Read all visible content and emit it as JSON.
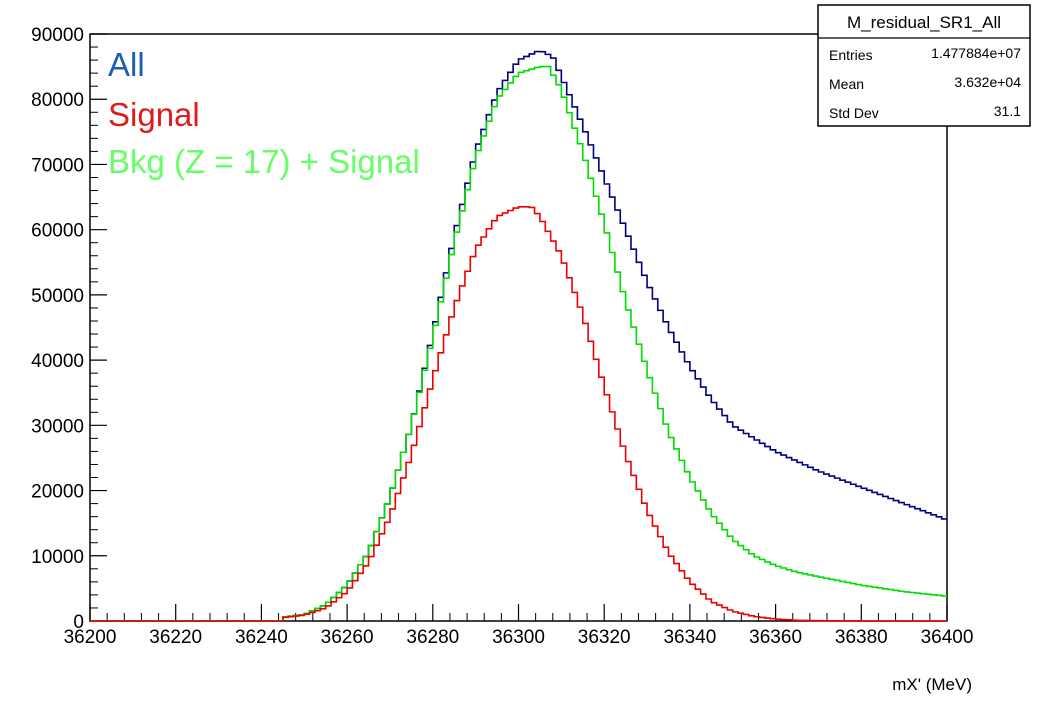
{
  "chart_data": {
    "type": "line",
    "xlabel": "mX' (MeV)",
    "ylabel": "",
    "xlim": [
      36200,
      36400
    ],
    "ylim": [
      0,
      90000
    ],
    "x_ticks": [
      36200,
      36220,
      36240,
      36260,
      36280,
      36300,
      36320,
      36340,
      36360,
      36380,
      36400
    ],
    "y_ticks": [
      0,
      10000,
      20000,
      30000,
      40000,
      50000,
      60000,
      70000,
      80000,
      90000
    ],
    "x_tick_labels": [
      "36200",
      "36220",
      "36240",
      "36260",
      "36280",
      "36300",
      "36320",
      "36340",
      "36360",
      "36380",
      "36400"
    ],
    "y_tick_labels": [
      "0",
      "10000",
      "20000",
      "30000",
      "40000",
      "50000",
      "60000",
      "70000",
      "80000",
      "90000"
    ],
    "grid": false,
    "legend_placement": "top-left",
    "series": [
      {
        "name": "All",
        "color": "#000080",
        "x": [
          36250,
          36255,
          36260,
          36265,
          36270,
          36275,
          36280,
          36285,
          36290,
          36295,
          36300,
          36305,
          36308,
          36310,
          36315,
          36320,
          36325,
          36330,
          36335,
          36340,
          36345,
          36350,
          36355,
          36360,
          36365,
          36370,
          36380,
          36390,
          36400
        ],
        "y": [
          1000,
          2500,
          5500,
          10500,
          19000,
          30000,
          44000,
          59000,
          72000,
          81000,
          86000,
          87500,
          86500,
          83500,
          76000,
          68000,
          60000,
          52000,
          45000,
          39000,
          34000,
          30000,
          28000,
          26000,
          24500,
          23000,
          20500,
          18000,
          15500
        ]
      },
      {
        "name": "Signal",
        "color": "#ee0000",
        "x": [
          36250,
          36255,
          36260,
          36265,
          36270,
          36275,
          36280,
          36285,
          36290,
          36295,
          36300,
          36303,
          36305,
          36310,
          36315,
          36320,
          36325,
          36330,
          36335,
          36340,
          36345,
          36350,
          36355,
          36360,
          36365,
          36370,
          36380,
          36390,
          36400
        ],
        "y": [
          900,
          2000,
          4500,
          9000,
          16000,
          25500,
          37000,
          48000,
          57000,
          62000,
          63500,
          63500,
          62000,
          56000,
          47000,
          36000,
          25500,
          17000,
          10500,
          6000,
          3000,
          1500,
          700,
          300,
          100,
          50,
          0,
          0,
          0
        ]
      },
      {
        "name": "Bkg (Z = 17) + Signal",
        "color": "#00dd00",
        "x": [
          36250,
          36255,
          36260,
          36265,
          36270,
          36275,
          36280,
          36285,
          36290,
          36295,
          36300,
          36305,
          36307,
          36310,
          36315,
          36320,
          36325,
          36330,
          36335,
          36340,
          36345,
          36350,
          36355,
          36360,
          36365,
          36370,
          36380,
          36390,
          36400
        ],
        "y": [
          1000,
          2500,
          5500,
          10500,
          19000,
          30000,
          43500,
          58000,
          71000,
          80000,
          84000,
          85000,
          85000,
          81500,
          72000,
          61000,
          49000,
          38500,
          29000,
          22000,
          16500,
          12500,
          10000,
          8500,
          7500,
          6800,
          5500,
          4500,
          3800
        ]
      }
    ],
    "stats_box": {
      "title": "M_residual_SR1_All",
      "rows": [
        {
          "label": "Entries",
          "value": "1.477884e+07"
        },
        {
          "label": "Mean",
          "value": "3.632e+04"
        },
        {
          "label": "Std Dev",
          "value": "31.1"
        }
      ]
    }
  }
}
